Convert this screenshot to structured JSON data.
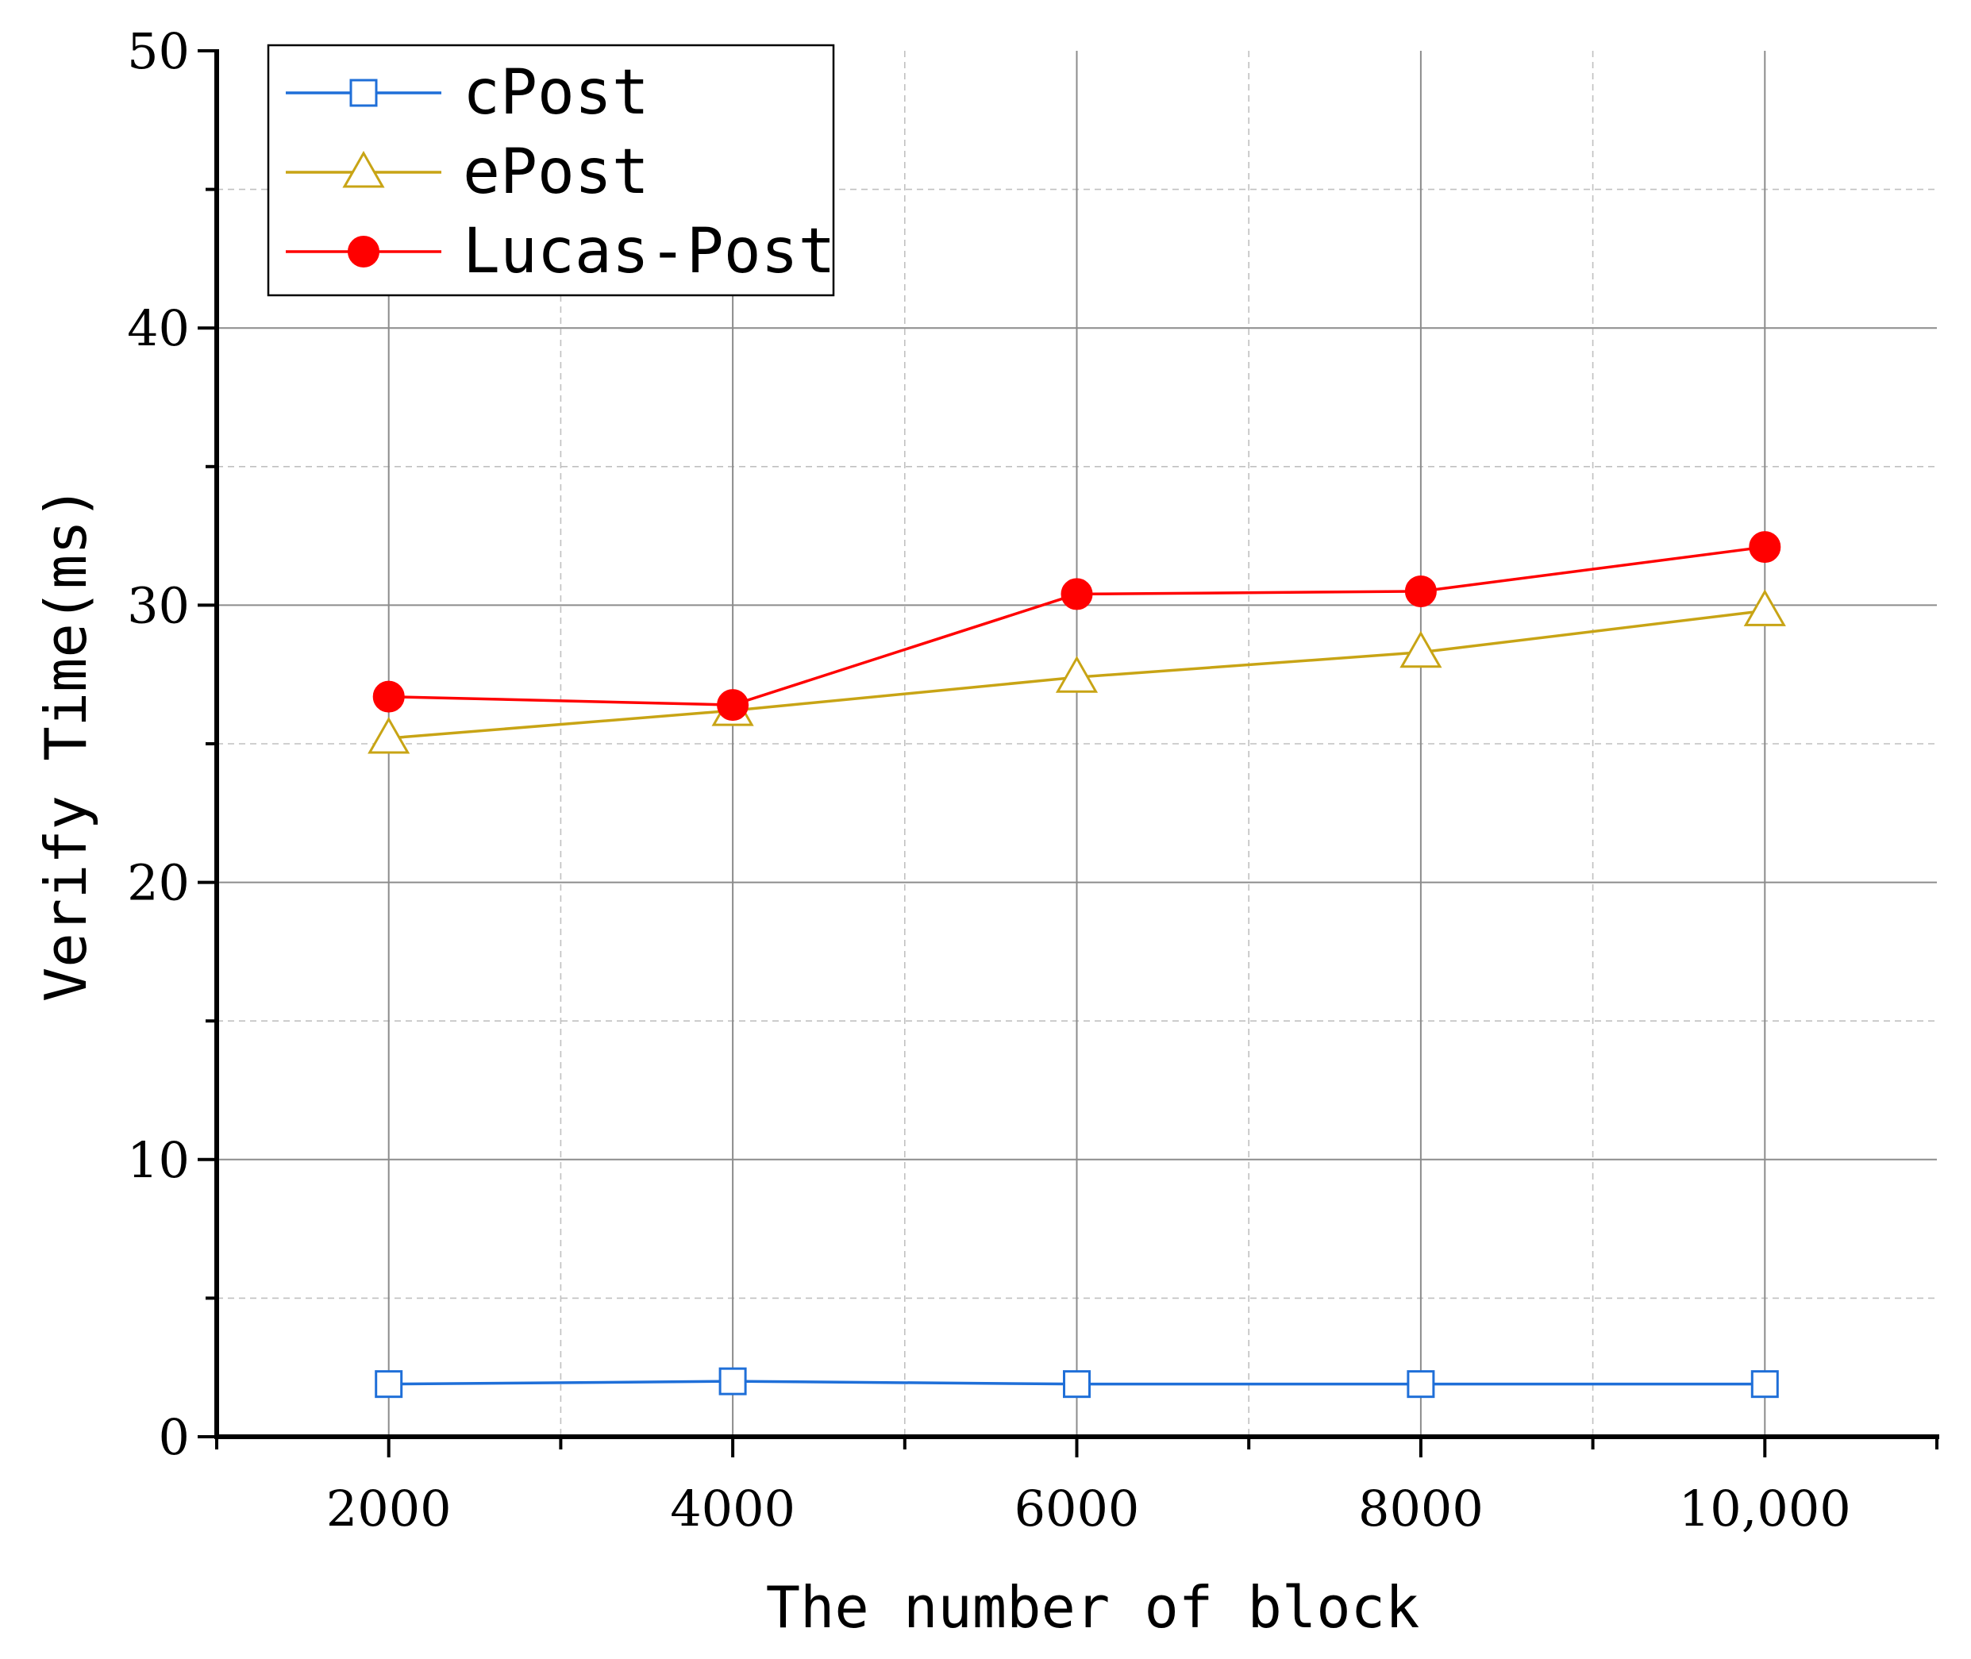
{
  "chart_data": {
    "type": "line",
    "xlabel": "The number of block",
    "ylabel": "Verify Time(ms)",
    "x": [
      2000,
      4000,
      6000,
      8000,
      10000
    ],
    "x_tick_labels": [
      "2000",
      "4000",
      "6000",
      "8000",
      "10,000"
    ],
    "xlim": [
      1000,
      11000
    ],
    "ylim": [
      0,
      50
    ],
    "y_ticks": [
      0,
      10,
      20,
      30,
      40,
      50
    ],
    "y_tick_labels": [
      "0",
      "10",
      "20",
      "30",
      "40",
      "50"
    ],
    "grid": true,
    "legend_position": "top-left",
    "series": [
      {
        "name": "cPost",
        "values": [
          1.9,
          2.0,
          1.9,
          1.9,
          1.9
        ],
        "color": "#1f6fd8",
        "marker": "square-open"
      },
      {
        "name": "ePost",
        "values": [
          25.2,
          26.2,
          27.4,
          28.3,
          29.8
        ],
        "color": "#c8a415",
        "marker": "triangle-open"
      },
      {
        "name": "Lucas-Post",
        "values": [
          26.7,
          26.4,
          30.4,
          30.5,
          32.1
        ],
        "color": "#ff0000",
        "marker": "circle-filled"
      }
    ]
  }
}
